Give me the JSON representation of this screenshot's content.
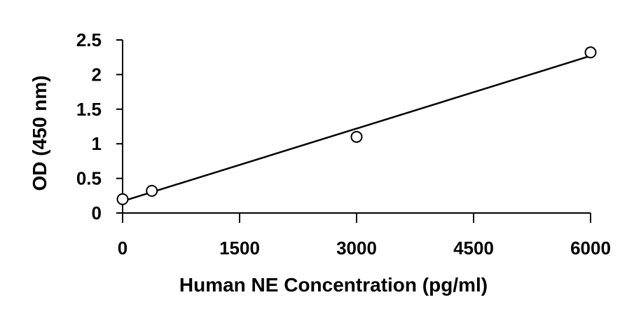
{
  "chart_data": {
    "type": "scatter",
    "title": "",
    "xlabel": "Human NE Concentration (pg/ml)",
    "ylabel": "OD (450 nm)",
    "xlim": [
      0,
      6000
    ],
    "ylim": [
      0,
      2.5
    ],
    "x_ticks": [
      "0",
      "1500",
      "3000",
      "4500",
      "6000"
    ],
    "y_ticks": [
      "0",
      "0.5",
      "1",
      "1.5",
      "2",
      "2.5"
    ],
    "grid": false,
    "legend": "none",
    "series": [
      {
        "marker": "open-circle",
        "x": [
          0,
          375,
          3000,
          6000
        ],
        "y": [
          0.2,
          0.32,
          1.1,
          2.32
        ]
      }
    ],
    "trendline": {
      "type": "linear",
      "x": [
        0,
        6000
      ],
      "y": [
        0.17,
        2.27
      ]
    }
  }
}
